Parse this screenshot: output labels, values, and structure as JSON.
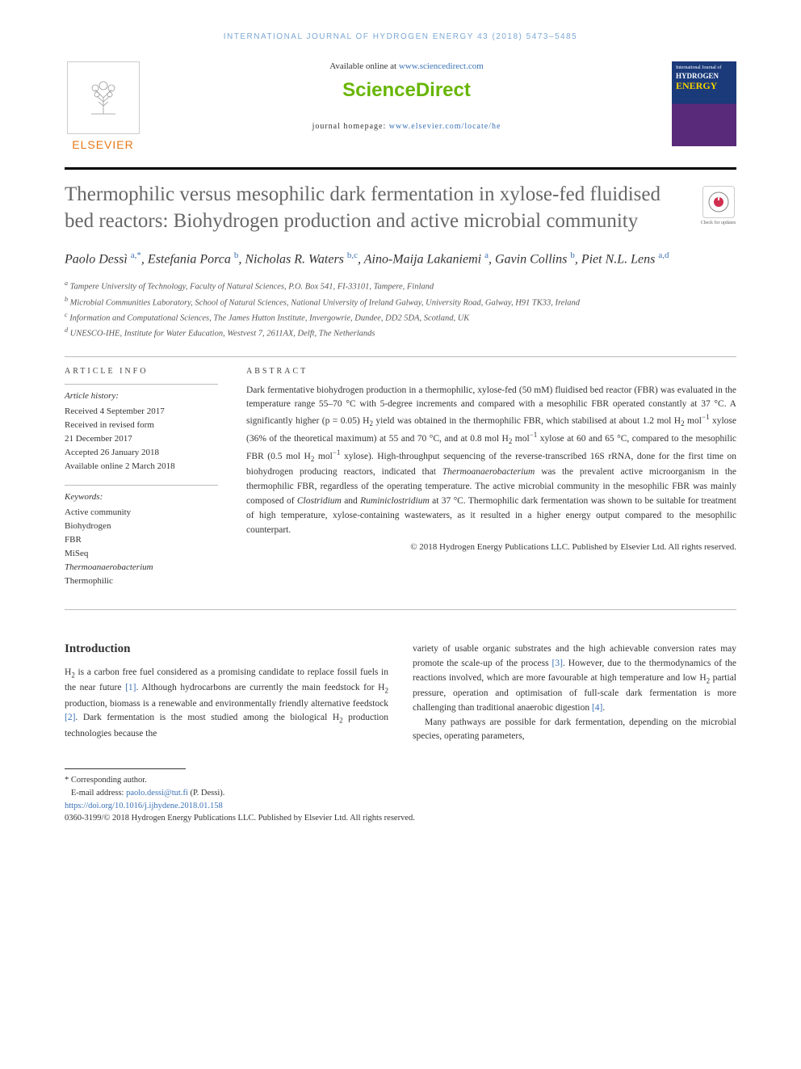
{
  "running_head": "INTERNATIONAL JOURNAL OF HYDROGEN ENERGY 43 (2018) 5473–5485",
  "header": {
    "elsevier": "ELSEVIER",
    "available_prefix": "Available online at ",
    "sd_url": "www.sciencedirect.com",
    "sd_brand": "ScienceDirect",
    "homepage_prefix": "journal homepage: ",
    "homepage_url": "www.elsevier.com/locate/he",
    "cover_small": "International Journal of",
    "cover_h": "HYDROGEN",
    "cover_e": "ENERGY",
    "check_updates": "Check for updates"
  },
  "title": "Thermophilic versus mesophilic dark fermentation in xylose-fed fluidised bed reactors: Biohydrogen production and active microbial community",
  "authors_html": "Paolo Dessì <span class='sup'>a,*</span>, Estefania Porca <span class='sup'>b</span>, Nicholas R. Waters <span class='sup'>b,c</span>, Aino-Maija Lakaniemi <span class='sup'>a</span>, Gavin Collins <span class='sup'>b</span>, Piet N.L. Lens <span class='sup'>a,d</span>",
  "affiliations": [
    {
      "sup": "a",
      "text": "Tampere University of Technology, Faculty of Natural Sciences, P.O. Box 541, FI-33101, Tampere, Finland"
    },
    {
      "sup": "b",
      "text": "Microbial Communities Laboratory, School of Natural Sciences, National University of Ireland Galway, University Road, Galway, H91 TK33, Ireland"
    },
    {
      "sup": "c",
      "text": "Information and Computational Sciences, The James Hutton Institute, Invergowrie, Dundee, DD2 5DA, Scotland, UK"
    },
    {
      "sup": "d",
      "text": "UNESCO-IHE, Institute for Water Education, Westvest 7, 2611AX, Delft, The Netherlands"
    }
  ],
  "info_label": "ARTICLE INFO",
  "abs_label": "ABSTRACT",
  "history_heading": "Article history:",
  "history": [
    "Received 4 September 2017",
    "Received in revised form",
    "21 December 2017",
    "Accepted 26 January 2018",
    "Available online 2 March 2018"
  ],
  "keywords_heading": "Keywords:",
  "keywords": [
    "Active community",
    "Biohydrogen",
    "FBR",
    "MiSeq",
    "Thermoanaerobacterium",
    "Thermophilic"
  ],
  "abstract": "Dark fermentative biohydrogen production in a thermophilic, xylose-fed (50 mM) fluidised bed reactor (FBR) was evaluated in the temperature range 55–70 °C with 5-degree increments and compared with a mesophilic FBR operated constantly at 37 °C. A significantly higher (p = 0.05) H<sub>2</sub> yield was obtained in the thermophilic FBR, which stabilised at about 1.2 mol H<sub>2</sub> mol<sup>−1</sup> xylose (36% of the theoretical maximum) at 55 and 70 °C, and at 0.8 mol H<sub>2</sub> mol<sup>−1</sup> xylose at 60 and 65 °C, compared to the mesophilic FBR (0.5 mol H<sub>2</sub> mol<sup>−1</sup> xylose). High-throughput sequencing of the reverse-transcribed 16S rRNA, done for the first time on biohydrogen producing reactors, indicated that <span class='ital'>Thermoanaerobacterium</span> was the prevalent active microorganism in the thermophilic FBR, regardless of the operating temperature. The active microbial community in the mesophilic FBR was mainly composed of <span class='ital'>Clostridium</span> and <span class='ital'>Ruminiclostridium</span> at 37 °C. Thermophilic dark fermentation was shown to be suitable for treatment of high temperature, xylose-containing wastewaters, as it resulted in a higher energy output compared to the mesophilic counterpart.",
  "copyright": "© 2018 Hydrogen Energy Publications LLC. Published by Elsevier Ltd. All rights reserved.",
  "intro_heading": "Introduction",
  "intro_col1": "H<sub>2</sub> is a carbon free fuel considered as a promising candidate to replace fossil fuels in the near future <span class='cite'>[1]</span>. Although hydrocarbons are currently the main feedstock for H<sub>2</sub> production, biomass is a renewable and environmentally friendly alternative feedstock <span class='cite'>[2]</span>. Dark fermentation is the most studied among the biological H<sub>2</sub> production technologies because the",
  "intro_col2_p1": "variety of usable organic substrates and the high achievable conversion rates may promote the scale-up of the process <span class='cite'>[3]</span>. However, due to the thermodynamics of the reactions involved, which are more favourable at high temperature and low H<sub>2</sub> partial pressure, operation and optimisation of full-scale dark fermentation is more challenging than traditional anaerobic digestion <span class='cite'>[4]</span>.",
  "intro_col2_p2": "Many pathways are possible for dark fermentation, depending on the microbial species, operating parameters,",
  "footnote_corr": "* Corresponding author.",
  "footnote_email_label": "E-mail address: ",
  "footnote_email": "paolo.dessi@tut.fi",
  "footnote_email_suffix": " (P. Dessì).",
  "doi": "https://doi.org/10.1016/j.ijhydene.2018.01.158",
  "issn_line": "0360-3199/© 2018 Hydrogen Energy Publications LLC. Published by Elsevier Ltd. All rights reserved.",
  "colors": {
    "link": "#3a72b5",
    "sd_green": "#68b604",
    "elsevier_orange": "#e67817",
    "title_gray": "#676767"
  }
}
